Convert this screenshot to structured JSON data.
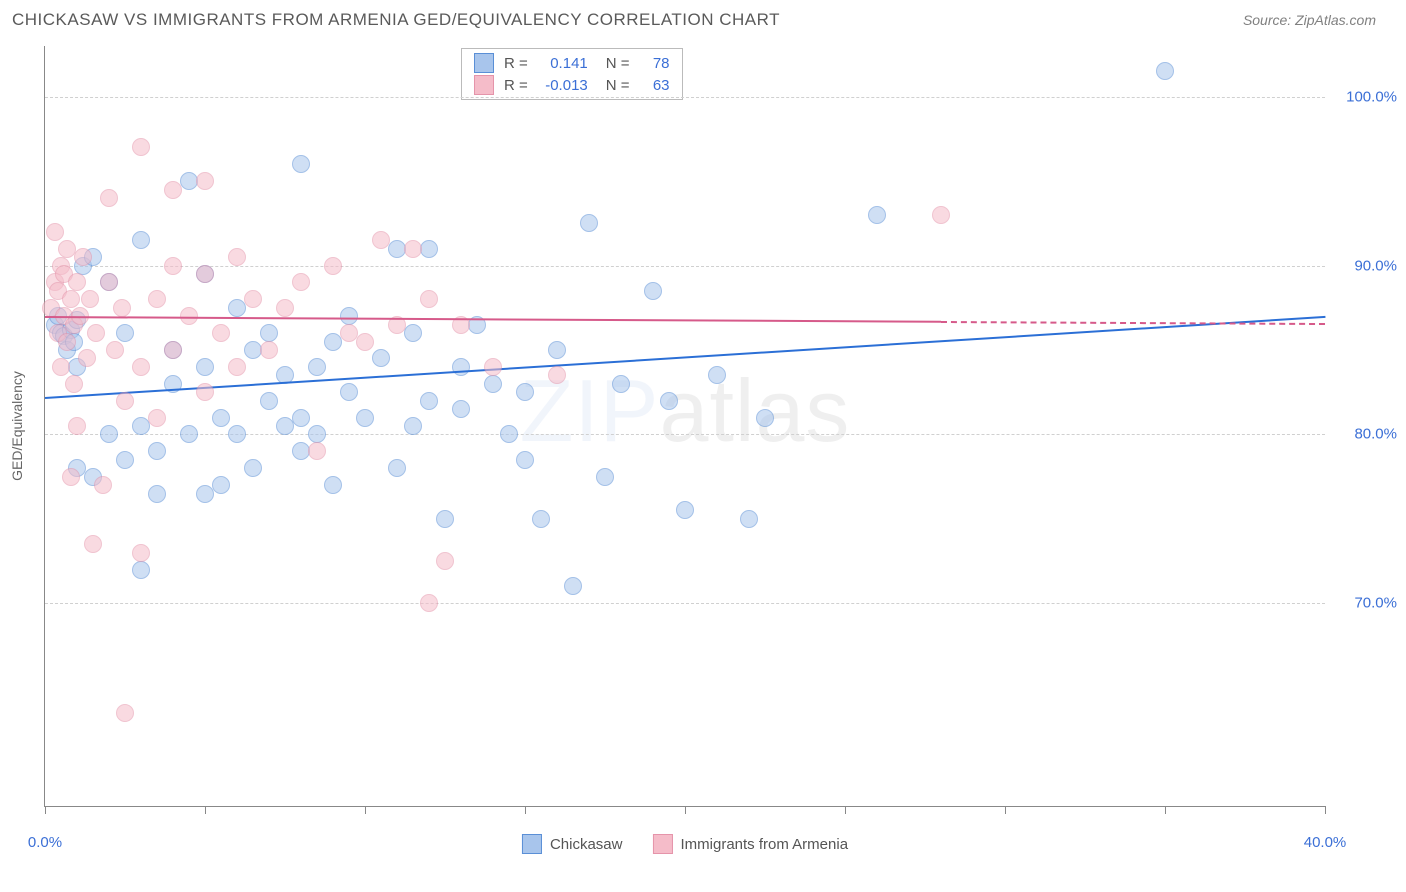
{
  "title": "CHICKASAW VS IMMIGRANTS FROM ARMENIA GED/EQUIVALENCY CORRELATION CHART",
  "source": "Source: ZipAtlas.com",
  "watermark_prefix": "ZIP",
  "watermark_suffix": "atlas",
  "y_axis_label": "GED/Equivalency",
  "chart": {
    "type": "scatter",
    "xlim": [
      0,
      40
    ],
    "ylim": [
      58,
      103
    ],
    "x_ticks": [
      0,
      5,
      10,
      15,
      20,
      25,
      30,
      35,
      40
    ],
    "x_tick_labels": {
      "0": "0.0%",
      "40": "40.0%"
    },
    "y_gridlines": [
      70,
      80,
      90,
      100
    ],
    "y_tick_labels": {
      "70": "70.0%",
      "80": "80.0%",
      "90": "90.0%",
      "100": "100.0%"
    },
    "background_color": "#ffffff",
    "grid_color": "#d0d0d0",
    "axis_color": "#888888",
    "tick_label_color": "#3b6fd6",
    "marker_radius": 8,
    "marker_opacity": 0.55
  },
  "series": [
    {
      "name": "Chickasaw",
      "fill_color": "#a8c5ec",
      "stroke_color": "#5a8fd6",
      "line_color": "#2b6fd6",
      "R": "0.141",
      "N": "78",
      "trend": {
        "x1": 0,
        "y1": 82.2,
        "x2": 40,
        "y2": 87.0,
        "dash_from_x": null
      },
      "points": [
        [
          0.3,
          86.5
        ],
        [
          0.4,
          87.0
        ],
        [
          0.5,
          86.0
        ],
        [
          0.6,
          85.8
        ],
        [
          0.7,
          85.0
        ],
        [
          0.8,
          86.2
        ],
        [
          0.9,
          85.5
        ],
        [
          1.0,
          86.8
        ],
        [
          1.0,
          78.0
        ],
        [
          1.2,
          90.0
        ],
        [
          1.5,
          90.5
        ],
        [
          1.5,
          77.5
        ],
        [
          2.0,
          80.0
        ],
        [
          2.0,
          89.0
        ],
        [
          2.5,
          78.5
        ],
        [
          2.5,
          86.0
        ],
        [
          3.0,
          80.5
        ],
        [
          3.0,
          91.5
        ],
        [
          3.0,
          72.0
        ],
        [
          3.5,
          79.0
        ],
        [
          3.5,
          76.5
        ],
        [
          4.0,
          83.0
        ],
        [
          4.0,
          85.0
        ],
        [
          4.5,
          80.0
        ],
        [
          4.5,
          95.0
        ],
        [
          5.0,
          76.5
        ],
        [
          5.0,
          84.0
        ],
        [
          5.0,
          89.5
        ],
        [
          5.5,
          81.0
        ],
        [
          5.5,
          77.0
        ],
        [
          6.0,
          87.5
        ],
        [
          6.0,
          80.0
        ],
        [
          6.5,
          85.0
        ],
        [
          6.5,
          78.0
        ],
        [
          7.0,
          82.0
        ],
        [
          7.0,
          86.0
        ],
        [
          7.5,
          83.5
        ],
        [
          7.5,
          80.5
        ],
        [
          8.0,
          81.0
        ],
        [
          8.0,
          79.0
        ],
        [
          8.0,
          96.0
        ],
        [
          8.5,
          84.0
        ],
        [
          8.5,
          80.0
        ],
        [
          9.0,
          77.0
        ],
        [
          9.0,
          85.5
        ],
        [
          9.5,
          82.5
        ],
        [
          9.5,
          87.0
        ],
        [
          10.0,
          81.0
        ],
        [
          10.5,
          84.5
        ],
        [
          11.0,
          78.0
        ],
        [
          11.0,
          91.0
        ],
        [
          11.5,
          86.0
        ],
        [
          11.5,
          80.5
        ],
        [
          12.0,
          82.0
        ],
        [
          12.0,
          91.0
        ],
        [
          12.5,
          75.0
        ],
        [
          13.0,
          84.0
        ],
        [
          13.0,
          81.5
        ],
        [
          13.5,
          86.5
        ],
        [
          14.0,
          83.0
        ],
        [
          14.5,
          80.0
        ],
        [
          15.0,
          82.5
        ],
        [
          15.0,
          78.5
        ],
        [
          15.5,
          75.0
        ],
        [
          16.0,
          85.0
        ],
        [
          16.5,
          71.0
        ],
        [
          17.0,
          92.5
        ],
        [
          17.5,
          77.5
        ],
        [
          18.0,
          83.0
        ],
        [
          19.0,
          88.5
        ],
        [
          19.5,
          82.0
        ],
        [
          20.0,
          75.5
        ],
        [
          21.0,
          83.5
        ],
        [
          22.0,
          75.0
        ],
        [
          22.5,
          81.0
        ],
        [
          26.0,
          93.0
        ],
        [
          35.0,
          101.5
        ],
        [
          1.0,
          84.0
        ]
      ]
    },
    {
      "name": "Immigrants from Armenia",
      "fill_color": "#f5bcc9",
      "stroke_color": "#e594aa",
      "line_color": "#d65a8a",
      "R": "-0.013",
      "N": "63",
      "trend": {
        "x1": 0,
        "y1": 87.0,
        "x2": 40,
        "y2": 86.6,
        "dash_from_x": 28
      },
      "points": [
        [
          0.2,
          87.5
        ],
        [
          0.3,
          92.0
        ],
        [
          0.3,
          89.0
        ],
        [
          0.4,
          86.0
        ],
        [
          0.4,
          88.5
        ],
        [
          0.5,
          90.0
        ],
        [
          0.5,
          84.0
        ],
        [
          0.6,
          87.0
        ],
        [
          0.6,
          89.5
        ],
        [
          0.7,
          85.5
        ],
        [
          0.7,
          91.0
        ],
        [
          0.8,
          88.0
        ],
        [
          0.8,
          77.5
        ],
        [
          0.9,
          86.5
        ],
        [
          0.9,
          83.0
        ],
        [
          1.0,
          89.0
        ],
        [
          1.0,
          80.5
        ],
        [
          1.1,
          87.0
        ],
        [
          1.2,
          90.5
        ],
        [
          1.3,
          84.5
        ],
        [
          1.4,
          88.0
        ],
        [
          1.5,
          73.5
        ],
        [
          1.6,
          86.0
        ],
        [
          1.8,
          77.0
        ],
        [
          2.0,
          94.0
        ],
        [
          2.0,
          89.0
        ],
        [
          2.2,
          85.0
        ],
        [
          2.4,
          87.5
        ],
        [
          2.5,
          82.0
        ],
        [
          2.5,
          63.5
        ],
        [
          3.0,
          97.0
        ],
        [
          3.0,
          84.0
        ],
        [
          3.0,
          73.0
        ],
        [
          3.5,
          88.0
        ],
        [
          3.5,
          81.0
        ],
        [
          4.0,
          90.0
        ],
        [
          4.0,
          85.0
        ],
        [
          4.0,
          94.5
        ],
        [
          4.5,
          87.0
        ],
        [
          5.0,
          95.0
        ],
        [
          5.0,
          82.5
        ],
        [
          5.0,
          89.5
        ],
        [
          5.5,
          86.0
        ],
        [
          6.0,
          84.0
        ],
        [
          6.0,
          90.5
        ],
        [
          6.5,
          88.0
        ],
        [
          7.0,
          85.0
        ],
        [
          7.5,
          87.5
        ],
        [
          8.0,
          89.0
        ],
        [
          8.5,
          79.0
        ],
        [
          9.0,
          90.0
        ],
        [
          9.5,
          86.0
        ],
        [
          10.0,
          85.5
        ],
        [
          10.5,
          91.5
        ],
        [
          11.0,
          86.5
        ],
        [
          11.5,
          91.0
        ],
        [
          12.0,
          88.0
        ],
        [
          12.0,
          70.0
        ],
        [
          12.5,
          72.5
        ],
        [
          13.0,
          86.5
        ],
        [
          14.0,
          84.0
        ],
        [
          16.0,
          83.5
        ],
        [
          28.0,
          93.0
        ]
      ]
    }
  ],
  "stats_labels": {
    "R": "R =",
    "N": "N ="
  },
  "legend": {
    "label1": "Chickasaw",
    "label2": "Immigrants from Armenia"
  }
}
